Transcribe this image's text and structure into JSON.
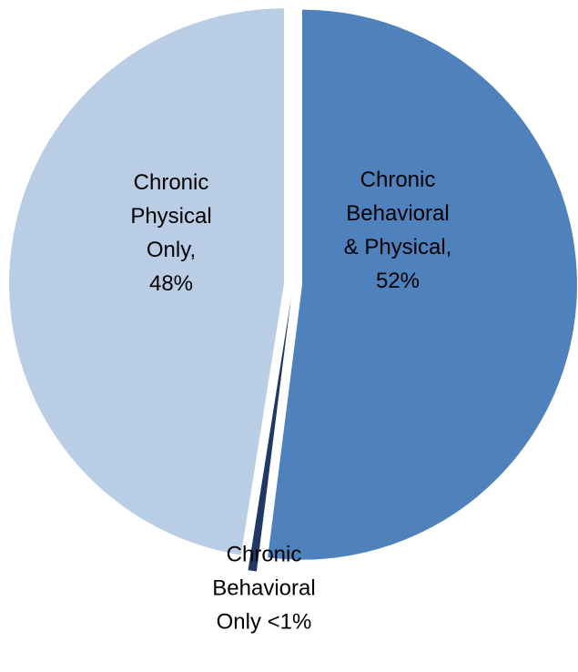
{
  "chart_data": {
    "type": "pie",
    "title": "",
    "slices": [
      {
        "label_lines": [
          "Chronic",
          "Behavioral",
          "& Physical,",
          "52%"
        ],
        "value": 52,
        "color": "#4F81BD"
      },
      {
        "label_lines": [
          "Chronic",
          "Behavioral",
          "Only <1%"
        ],
        "value": 0.5,
        "color": "#1F3864"
      },
      {
        "label_lines": [
          "Chronic",
          "Physical",
          "Only,",
          "48%"
        ],
        "value": 47.5,
        "color": "#B9CDE5"
      }
    ],
    "legend": "none"
  }
}
